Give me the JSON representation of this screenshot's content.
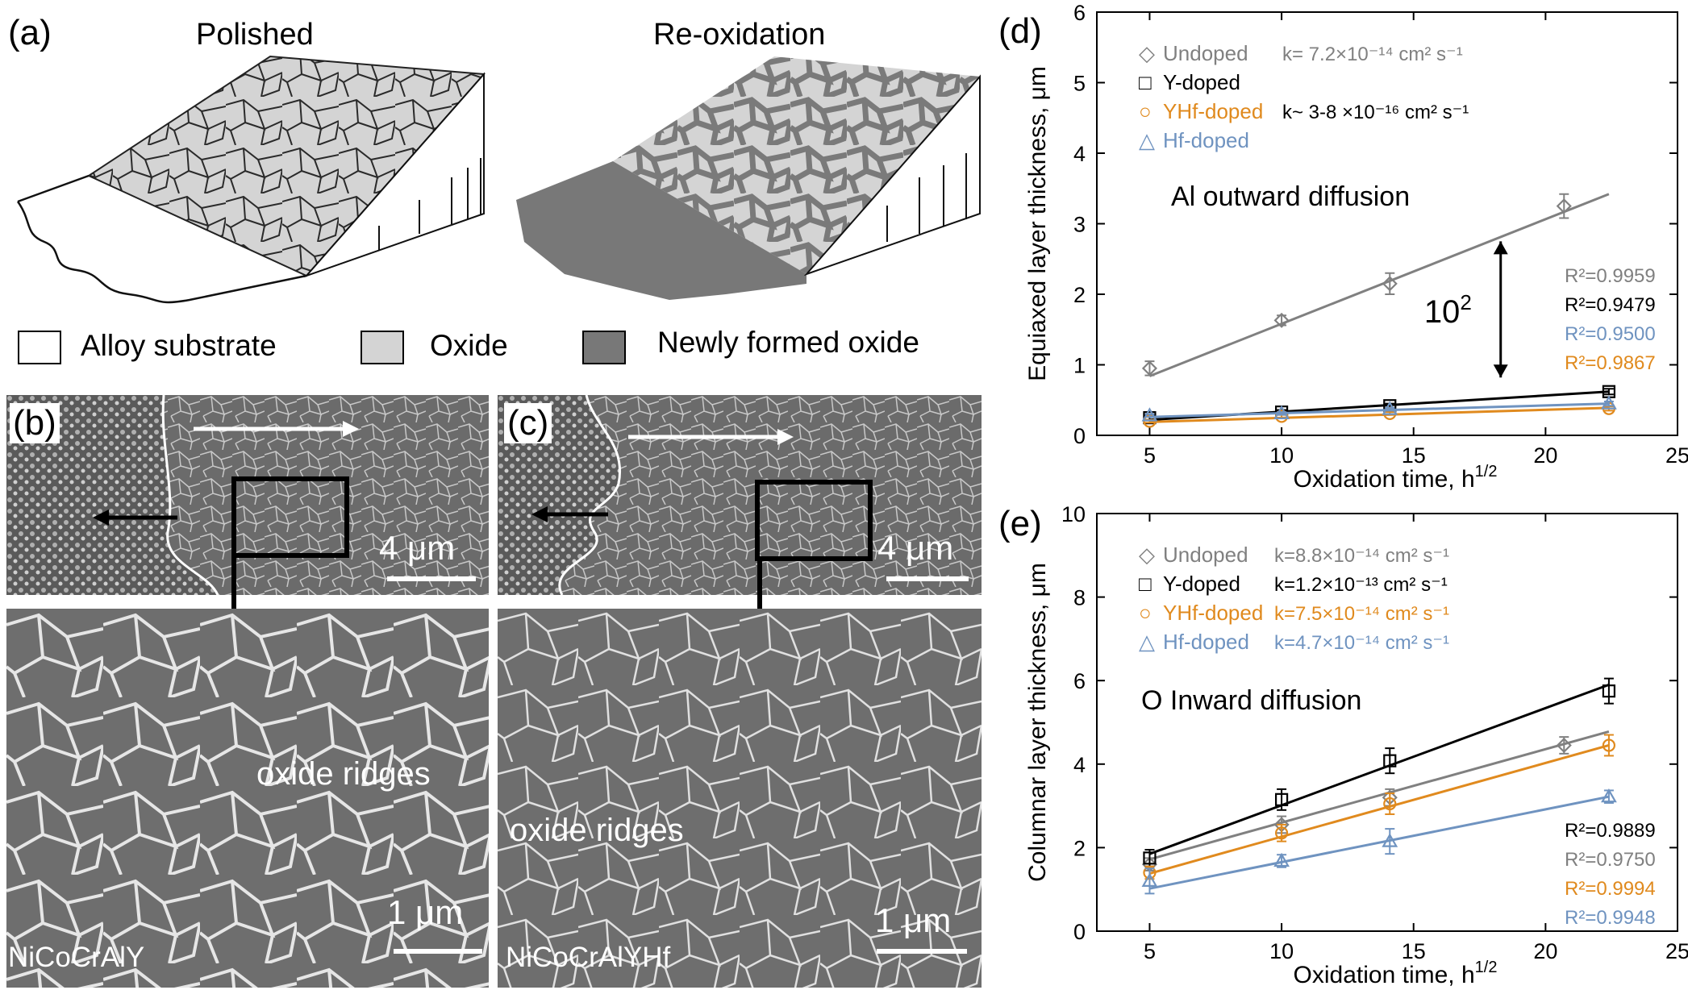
{
  "panel_a": {
    "label": "(a)",
    "titles": {
      "polished": "Polished",
      "reoxidation": "Re-oxidation"
    },
    "legend": [
      {
        "label": "Alloy substrate",
        "color": "#ffffff"
      },
      {
        "label": "Oxide",
        "color": "#d4d4d4"
      },
      {
        "label": "Newly formed oxide",
        "color": "#787878"
      }
    ]
  },
  "panel_b": {
    "label": "(b)",
    "scale_top": "4 μm",
    "scale_bottom": "1 μm",
    "annotation": "oxide ridges",
    "sample": "NiCoCrAlY"
  },
  "panel_c": {
    "label": "(c)",
    "scale_top": "4 μm",
    "scale_bottom": "1 μm",
    "annotation": "oxide ridges",
    "sample": "NiCoCrAlYHf"
  },
  "colors": {
    "undoped": "#808080",
    "ydoped": "#000000",
    "yhf": "#e08a1e",
    "hf": "#6f93c0"
  },
  "chart_data": [
    {
      "label": "(d)",
      "type": "scatter",
      "xlabel": "Oxidation time, h",
      "xlabel_sup": "1/2",
      "ylabel": "Equiaxed layer thickness, μm",
      "xlim": [
        3,
        25
      ],
      "ylim": [
        0,
        6
      ],
      "xticks": [
        "5",
        "10",
        "15",
        "20",
        "25"
      ],
      "yticks": [
        "0",
        "1",
        "2",
        "3",
        "4",
        "5",
        "6"
      ],
      "annotation": "Al outward diffusion",
      "ratio_label": "10",
      "ratio_sup": "2",
      "legend": [
        {
          "name": "Undoped",
          "marker": "◇",
          "k_text": "k= 7.2×10⁻¹⁴ cm² s⁻¹"
        },
        {
          "name": "Y-doped",
          "marker": "□",
          "k_text": ""
        },
        {
          "name": "YHf-doped",
          "marker": "○",
          "k_text": "k~ 3-8 ×10⁻¹⁶ cm² s⁻¹"
        },
        {
          "name": "Hf-doped",
          "marker": "△",
          "k_text": ""
        }
      ],
      "r2": [
        {
          "text": "R²=0.9959",
          "series": "undoped"
        },
        {
          "text": "R²=0.9479",
          "series": "ydoped"
        },
        {
          "text": "R²=0.9500",
          "series": "hf"
        },
        {
          "text": "R²=0.9867",
          "series": "yhf"
        }
      ],
      "series": [
        {
          "name": "Undoped",
          "key": "undoped",
          "marker": "diamond",
          "x": [
            5,
            10,
            14.1,
            20.7
          ],
          "y": [
            0.95,
            1.63,
            2.15,
            3.25
          ],
          "err": [
            0.1,
            0.07,
            0.15,
            0.17
          ],
          "fit": [
            [
              5,
              0.84
            ],
            [
              22.4,
              3.42
            ]
          ]
        },
        {
          "name": "Y-doped",
          "key": "ydoped",
          "marker": "square",
          "x": [
            5,
            10,
            14.1,
            22.4
          ],
          "y": [
            0.25,
            0.33,
            0.42,
            0.62
          ],
          "err": [
            0.03,
            0.03,
            0.03,
            0.04
          ],
          "fit": [
            [
              5,
              0.22
            ],
            [
              22.4,
              0.62
            ]
          ]
        },
        {
          "name": "YHf-doped",
          "key": "yhf",
          "marker": "circle",
          "x": [
            5,
            10,
            14.1,
            22.4
          ],
          "y": [
            0.2,
            0.27,
            0.31,
            0.38
          ],
          "err": [
            0.02,
            0.02,
            0.02,
            0.03
          ],
          "fit": [
            [
              5,
              0.19
            ],
            [
              22.4,
              0.39
            ]
          ]
        },
        {
          "name": "Hf-doped",
          "key": "hf",
          "marker": "triangle",
          "x": [
            5,
            10,
            14.1,
            22.4
          ],
          "y": [
            0.28,
            0.31,
            0.37,
            0.45
          ],
          "err": [
            0.02,
            0.02,
            0.02,
            0.03
          ],
          "fit": [
            [
              5,
              0.26
            ],
            [
              22.4,
              0.45
            ]
          ]
        }
      ]
    },
    {
      "label": "(e)",
      "type": "scatter",
      "xlabel": "Oxidation time, h",
      "xlabel_sup": "1/2",
      "ylabel": "Columnar layer thickness, μm",
      "xlim": [
        3,
        25
      ],
      "ylim": [
        0,
        10
      ],
      "xticks": [
        "5",
        "10",
        "15",
        "20",
        "25"
      ],
      "yticks": [
        "0",
        "2",
        "4",
        "6",
        "8",
        "10"
      ],
      "annotation": "O Inward  diffusion",
      "legend": [
        {
          "name": "Undoped",
          "marker": "◇",
          "k_text": "k=8.8×10⁻¹⁴ cm² s⁻¹"
        },
        {
          "name": "Y-doped",
          "marker": "□",
          "k_text": "k=1.2×10⁻¹³ cm² s⁻¹"
        },
        {
          "name": "YHf-doped",
          "marker": "○",
          "k_text": "k=7.5×10⁻¹⁴ cm² s⁻¹"
        },
        {
          "name": "Hf-doped",
          "marker": "△",
          "k_text": "k=4.7×10⁻¹⁴ cm² s⁻¹"
        }
      ],
      "r2": [
        {
          "text": "R²=0.9889",
          "series": "ydoped"
        },
        {
          "text": "R²=0.9750",
          "series": "undoped"
        },
        {
          "text": "R²=0.9994",
          "series": "yhf"
        },
        {
          "text": "R²=0.9948",
          "series": "hf"
        }
      ],
      "series": [
        {
          "name": "Undoped",
          "key": "undoped",
          "marker": "diamond",
          "x": [
            5,
            10,
            14.1,
            20.7
          ],
          "y": [
            1.6,
            2.55,
            3.2,
            4.45
          ],
          "err": [
            0.15,
            0.2,
            0.2,
            0.2
          ],
          "fit": [
            [
              5,
              1.72
            ],
            [
              22.4,
              4.78
            ]
          ]
        },
        {
          "name": "Y-doped",
          "key": "ydoped",
          "marker": "square",
          "x": [
            5,
            10,
            14.1,
            22.4
          ],
          "y": [
            1.75,
            3.15,
            4.08,
            5.75
          ],
          "err": [
            0.2,
            0.25,
            0.3,
            0.3
          ],
          "fit": [
            [
              5,
              1.85
            ],
            [
              22.4,
              5.9
            ]
          ]
        },
        {
          "name": "YHf-doped",
          "key": "yhf",
          "marker": "circle",
          "x": [
            5,
            10,
            14.1,
            22.4
          ],
          "y": [
            1.4,
            2.35,
            3.05,
            4.45
          ],
          "err": [
            0.15,
            0.2,
            0.25,
            0.25
          ],
          "fit": [
            [
              5,
              1.38
            ],
            [
              22.4,
              4.45
            ]
          ]
        },
        {
          "name": "Hf-doped",
          "key": "hf",
          "marker": "triangle",
          "x": [
            5,
            10,
            14.1,
            22.4
          ],
          "y": [
            1.2,
            1.68,
            2.15,
            3.22
          ],
          "err": [
            0.3,
            0.15,
            0.3,
            0.15
          ],
          "fit": [
            [
              5,
              1.02
            ],
            [
              22.4,
              3.22
            ]
          ]
        }
      ]
    }
  ]
}
